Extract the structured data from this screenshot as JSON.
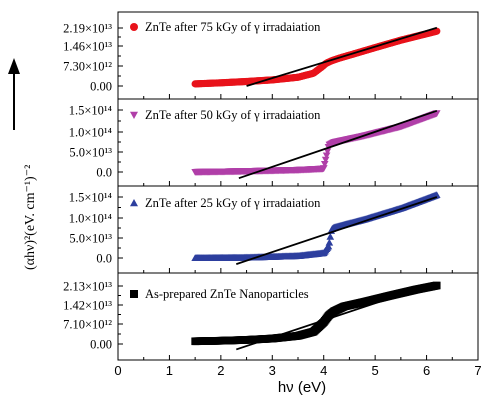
{
  "figure": {
    "y_axis_label": "(αhν)²(eV. cm⁻¹)⁻²",
    "x_axis_label": "hν (eV)"
  },
  "chart_data": [
    {
      "type": "scatter",
      "series": [
        {
          "name": "ZnTe after 75 kGy of γ irradaiation",
          "marker": "circle",
          "color": "#e8131b"
        }
      ],
      "xlim": [
        0,
        7
      ],
      "ylim": [
        -2000000000000.0,
        25000000000000.0
      ],
      "yticks": [
        0,
        7300000000000.0,
        14600000000000.0,
        21900000000000.0
      ],
      "ytick_labels": [
        "0.00",
        "7.30×10¹²",
        "1.46×10¹³",
        "2.19×10¹³"
      ],
      "curve": {
        "x": [
          1.5,
          2.0,
          2.5,
          3.0,
          3.5,
          3.8,
          3.95,
          4.05,
          4.15,
          4.3,
          4.6,
          5.0,
          5.5,
          6.2
        ],
        "y": [
          800000000000.0,
          1200000000000.0,
          1700000000000.0,
          2300000000000.0,
          3300000000000.0,
          4800000000000.0,
          7000000000000.0,
          8600000000000.0,
          9500000000000.0,
          10500000000000.0,
          12200000000000.0,
          14500000000000.0,
          17300000000000.0,
          20700000000000.0
        ]
      },
      "fit_line": {
        "x": [
          2.5,
          6.2
        ],
        "y": [
          0,
          22000000000000.0
        ]
      }
    },
    {
      "type": "scatter",
      "series": [
        {
          "name": "ZnTe after 50 kGy of γ irradaiation",
          "marker": "triangle-down",
          "color": "#b03fa8"
        }
      ],
      "xlim": [
        0,
        7
      ],
      "ylim": [
        -20000000000000.0,
        170000000000000.0
      ],
      "yticks": [
        0,
        50000000000000.0,
        100000000000000.0,
        150000000000000.0
      ],
      "ytick_labels": [
        "0.0",
        "5.0×10¹³",
        "1.0×10¹⁴",
        "1.5×10¹⁴"
      ],
      "curve": {
        "x": [
          1.5,
          2.5,
          3.5,
          4.0,
          4.1,
          4.2,
          4.8,
          5.5,
          6.2
        ],
        "y": [
          0,
          2000000000000.0,
          5000000000000.0,
          8000000000000.0,
          65000000000000.0,
          72000000000000.0,
          88000000000000.0,
          110000000000000.0,
          142000000000000.0
        ]
      },
      "fit_line": {
        "x": [
          2.35,
          6.2
        ],
        "y": [
          -15000000000000.0,
          148000000000000.0
        ]
      }
    },
    {
      "type": "scatter",
      "series": [
        {
          "name": "ZnTe after 25 kGy of γ irradaiation",
          "marker": "triangle-up",
          "color": "#2d3f9e"
        }
      ],
      "xlim": [
        0,
        7
      ],
      "ylim": [
        -20000000000000.0,
        170000000000000.0
      ],
      "yticks": [
        0,
        50000000000000.0,
        100000000000000.0,
        150000000000000.0
      ],
      "ytick_labels": [
        "0.0",
        "5.0×10¹³",
        "1.0×10¹⁴",
        "1.5×10¹⁴"
      ],
      "curve": {
        "x": [
          1.5,
          2.5,
          3.5,
          4.0,
          4.1,
          4.15,
          4.2,
          4.8,
          5.5,
          6.2
        ],
        "y": [
          0,
          1000000000000.0,
          5000000000000.0,
          12000000000000.0,
          30000000000000.0,
          70000000000000.0,
          75000000000000.0,
          95000000000000.0,
          122000000000000.0,
          155000000000000.0
        ]
      },
      "fit_line": {
        "x": [
          2.3,
          6.2
        ],
        "y": [
          -15000000000000.0,
          150000000000000.0
        ]
      }
    },
    {
      "type": "scatter",
      "series": [
        {
          "name": "As-prepared ZnTe Nanoparticles",
          "marker": "square",
          "color": "#000000"
        }
      ],
      "xlim": [
        0,
        7
      ],
      "ylim": [
        -2500000000000.0,
        24500000000000.0
      ],
      "yticks": [
        0,
        7100000000000.0,
        14200000000000.0,
        21300000000000.0
      ],
      "ytick_labels": [
        "0.00",
        "7.10×10¹²",
        "1.42×10¹³",
        "2.13×10¹³"
      ],
      "curve": {
        "x": [
          1.5,
          2.0,
          2.5,
          3.0,
          3.5,
          3.8,
          4.0,
          4.1,
          4.2,
          4.4,
          4.8,
          5.3,
          5.8,
          6.2
        ],
        "y": [
          1000000000000.0,
          1200000000000.0,
          1500000000000.0,
          2000000000000.0,
          3000000000000.0,
          4500000000000.0,
          8000000000000.0,
          10500000000000.0,
          12000000000000.0,
          13800000000000.0,
          15500000000000.0,
          17800000000000.0,
          20000000000000.0,
          21500000000000.0
        ]
      },
      "fit_line": {
        "x": [
          2.3,
          6.2
        ],
        "y": [
          -2000000000000.0,
          22500000000000.0
        ]
      }
    }
  ],
  "x_axis": {
    "ticks": [
      0,
      1,
      2,
      3,
      4,
      5,
      6,
      7
    ],
    "tick_labels": [
      "0",
      "1",
      "2",
      "3",
      "4",
      "5",
      "6",
      "7"
    ]
  }
}
